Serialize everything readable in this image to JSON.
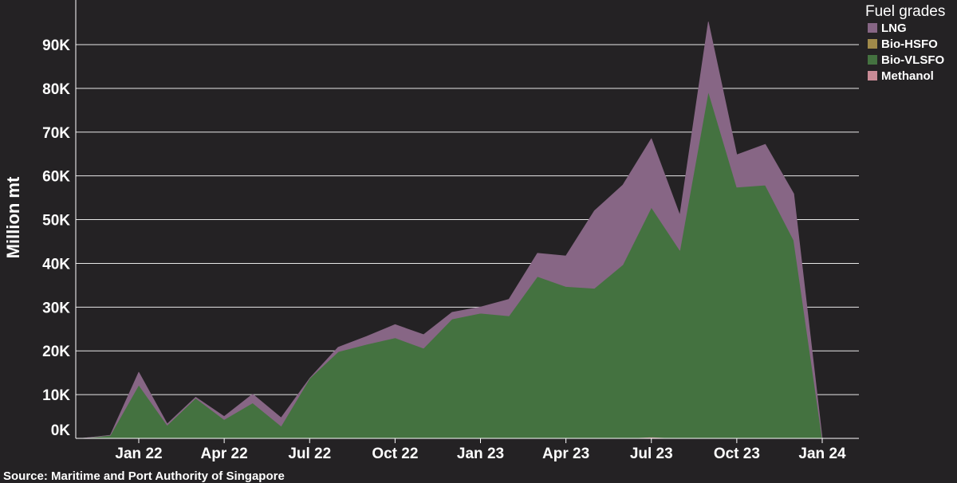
{
  "chart_data": {
    "type": "area",
    "stacked": true,
    "ylabel": "Million mt",
    "source": "Source: Maritime and Port Authority of Singapore",
    "legend_title": "Fuel grades",
    "legend_position": "top-right",
    "grid": "horizontal",
    "ylim": [
      0,
      97000
    ],
    "yticks": [
      0,
      10000,
      20000,
      30000,
      40000,
      50000,
      60000,
      70000,
      80000,
      90000
    ],
    "yticklabels": [
      "0K",
      "10K",
      "20K",
      "30K",
      "40K",
      "50K",
      "60K",
      "70K",
      "80K",
      "90K"
    ],
    "xticks": [
      "2022-01",
      "2022-04",
      "2022-07",
      "2022-10",
      "2023-01",
      "2023-04",
      "2023-07",
      "2023-10",
      "2024-01"
    ],
    "xticklabels": [
      "Jan 22",
      "Apr 22",
      "Jul 22",
      "Oct 22",
      "Jan 23",
      "Apr 23",
      "Jul 23",
      "Oct 23",
      "Jan 24"
    ],
    "x": [
      "2021-11",
      "2021-12",
      "2022-01",
      "2022-02",
      "2022-03",
      "2022-04",
      "2022-05",
      "2022-06",
      "2022-07",
      "2022-08",
      "2022-09",
      "2022-10",
      "2022-11",
      "2022-12",
      "2023-01",
      "2023-02",
      "2023-03",
      "2023-04",
      "2023-05",
      "2023-06",
      "2023-07",
      "2023-08",
      "2023-09",
      "2023-10",
      "2023-11",
      "2023-12",
      "2024-01"
    ],
    "series": [
      {
        "name": "Methanol",
        "color": "#c98b96",
        "values": [
          0,
          0,
          0,
          0,
          0,
          0,
          0,
          0,
          0,
          0,
          0,
          0,
          0,
          0,
          0,
          0,
          0,
          0,
          0,
          0,
          300,
          0,
          0,
          0,
          0,
          0,
          0
        ]
      },
      {
        "name": "Bio-VLSFO",
        "color": "#447240",
        "values": [
          0,
          700,
          12200,
          3000,
          9200,
          4300,
          8100,
          2800,
          13700,
          19800,
          21500,
          23000,
          20600,
          27300,
          28600,
          28000,
          37000,
          34700,
          34300,
          39700,
          52500,
          43000,
          79300,
          57400,
          57900,
          45300,
          0
        ]
      },
      {
        "name": "Bio-HSFO",
        "color": "#a08a4a",
        "values": [
          0,
          0,
          0,
          0,
          0,
          0,
          0,
          0,
          0,
          0,
          0,
          0,
          0,
          0,
          0,
          0,
          0,
          0,
          0,
          0,
          0,
          0,
          0,
          0,
          0,
          0,
          0
        ]
      },
      {
        "name": "LNG",
        "color": "#876685",
        "values": [
          0,
          0,
          2900,
          300,
          200,
          700,
          2000,
          1900,
          0,
          1000,
          1800,
          3000,
          3100,
          1500,
          1400,
          3800,
          5300,
          7000,
          17700,
          18200,
          15700,
          8000,
          15900,
          7400,
          9300,
          10600,
          0
        ]
      }
    ],
    "legend_order": [
      "LNG",
      "Bio-HSFO",
      "Bio-VLSFO",
      "Methanol"
    ]
  },
  "colors": {
    "background": "#242224",
    "gridline": "#e8e8e8",
    "text": "#ffffff"
  }
}
